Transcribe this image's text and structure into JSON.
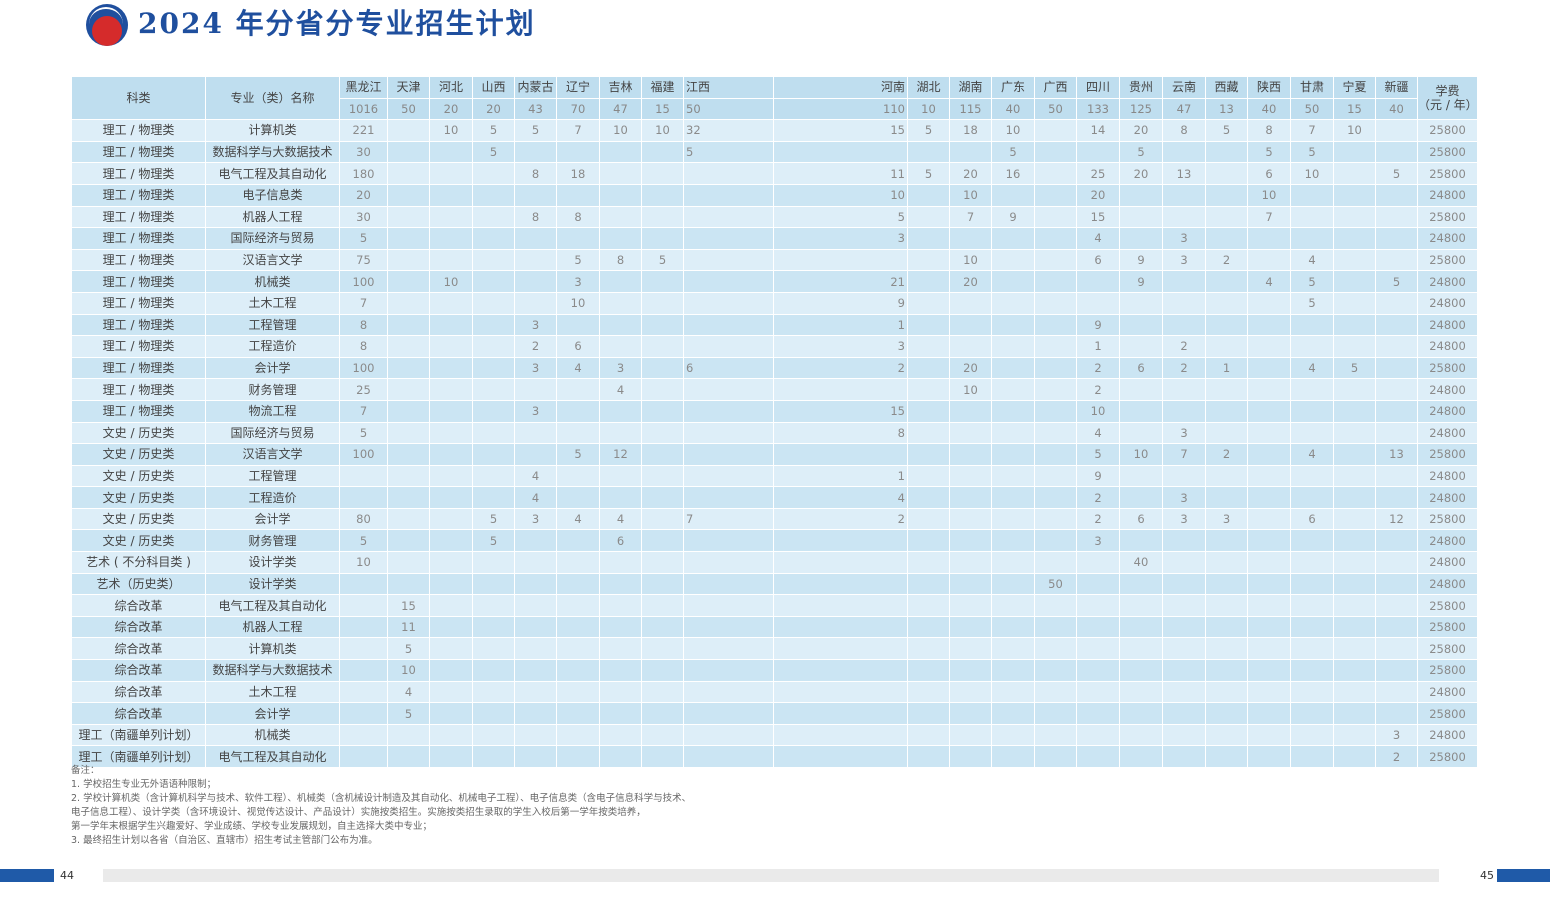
{
  "title": "2024 年分省分专业招生计划",
  "header": {
    "category": "科类",
    "major": "专业（类）名称",
    "fee": "学费（元 / 年）",
    "provinces": [
      "黑龙江",
      "天津",
      "河北",
      "山西",
      "内蒙古",
      "辽宁",
      "吉林",
      "福建",
      "江西",
      "河南",
      "湖北",
      "湖南",
      "广东",
      "广西",
      "四川",
      "贵州",
      "云南",
      "西藏",
      "陕西",
      "甘肃",
      "宁夏",
      "新疆"
    ],
    "totals": [
      "1016",
      "50",
      "20",
      "20",
      "43",
      "70",
      "47",
      "15",
      "50",
      "110",
      "10",
      "115",
      "40",
      "50",
      "133",
      "125",
      "47",
      "13",
      "40",
      "50",
      "15",
      "40"
    ]
  },
  "rows": [
    {
      "category": "理工 / 物理类",
      "major": "计算机类",
      "values": [
        "221",
        "",
        "10",
        "5",
        "5",
        "7",
        "10",
        "10",
        "32",
        "15",
        "5",
        "18",
        "10",
        "",
        "14",
        "20",
        "8",
        "5",
        "8",
        "7",
        "10",
        ""
      ],
      "fee": "25800"
    },
    {
      "category": "理工 / 物理类",
      "major": "数据科学与大数据技术",
      "values": [
        "30",
        "",
        "",
        "5",
        "",
        "",
        "",
        "",
        "5",
        "",
        "",
        "",
        "5",
        "",
        "",
        "5",
        "",
        "",
        "5",
        "5",
        "",
        ""
      ],
      "fee": "25800"
    },
    {
      "category": "理工 / 物理类",
      "major": "电气工程及其自动化",
      "values": [
        "180",
        "",
        "",
        "",
        "8",
        "18",
        "",
        "",
        "",
        "11",
        "5",
        "20",
        "16",
        "",
        "25",
        "20",
        "13",
        "",
        "6",
        "10",
        "",
        "5"
      ],
      "fee": "25800"
    },
    {
      "category": "理工 / 物理类",
      "major": "电子信息类",
      "values": [
        "20",
        "",
        "",
        "",
        "",
        "",
        "",
        "",
        "",
        "10",
        "",
        "10",
        "",
        "",
        "20",
        "",
        "",
        "",
        "10",
        "",
        "",
        ""
      ],
      "fee": "24800"
    },
    {
      "category": "理工 / 物理类",
      "major": "机器人工程",
      "values": [
        "30",
        "",
        "",
        "",
        "8",
        "8",
        "",
        "",
        "",
        "5",
        "",
        "7",
        "9",
        "",
        "15",
        "",
        "",
        "",
        "7",
        "",
        "",
        ""
      ],
      "fee": "25800"
    },
    {
      "category": "理工 / 物理类",
      "major": "国际经济与贸易",
      "values": [
        "5",
        "",
        "",
        "",
        "",
        "",
        "",
        "",
        "",
        "3",
        "",
        "",
        "",
        "",
        "4",
        "",
        "3",
        "",
        "",
        "",
        "",
        ""
      ],
      "fee": "24800"
    },
    {
      "category": "理工 / 物理类",
      "major": "汉语言文学",
      "values": [
        "75",
        "",
        "",
        "",
        "",
        "5",
        "8",
        "5",
        "",
        "",
        "",
        "10",
        "",
        "",
        "6",
        "9",
        "3",
        "2",
        "",
        "4",
        "",
        ""
      ],
      "fee": "25800"
    },
    {
      "category": "理工 / 物理类",
      "major": "机械类",
      "values": [
        "100",
        "",
        "10",
        "",
        "",
        "3",
        "",
        "",
        "",
        "21",
        "",
        "20",
        "",
        "",
        "",
        "9",
        "",
        "",
        "4",
        "5",
        "",
        "5"
      ],
      "fee": "24800"
    },
    {
      "category": "理工 / 物理类",
      "major": "土木工程",
      "values": [
        "7",
        "",
        "",
        "",
        "",
        "10",
        "",
        "",
        "",
        "9",
        "",
        "",
        "",
        "",
        "",
        "",
        "",
        "",
        "",
        "5",
        "",
        ""
      ],
      "fee": "24800"
    },
    {
      "category": "理工 / 物理类",
      "major": "工程管理",
      "values": [
        "8",
        "",
        "",
        "",
        "3",
        "",
        "",
        "",
        "",
        "1",
        "",
        "",
        "",
        "",
        "9",
        "",
        "",
        "",
        "",
        "",
        "",
        ""
      ],
      "fee": "24800"
    },
    {
      "category": "理工 / 物理类",
      "major": "工程造价",
      "values": [
        "8",
        "",
        "",
        "",
        "2",
        "6",
        "",
        "",
        "",
        "3",
        "",
        "",
        "",
        "",
        "1",
        "",
        "2",
        "",
        "",
        "",
        "",
        ""
      ],
      "fee": "24800"
    },
    {
      "category": "理工 / 物理类",
      "major": "会计学",
      "values": [
        "100",
        "",
        "",
        "",
        "3",
        "4",
        "3",
        "",
        "6",
        "2",
        "",
        "20",
        "",
        "",
        "2",
        "6",
        "2",
        "1",
        "",
        "4",
        "5",
        ""
      ],
      "fee": "25800"
    },
    {
      "category": "理工 / 物理类",
      "major": "财务管理",
      "values": [
        "25",
        "",
        "",
        "",
        "",
        "",
        "4",
        "",
        "",
        "",
        "",
        "10",
        "",
        "",
        "2",
        "",
        "",
        "",
        "",
        "",
        "",
        ""
      ],
      "fee": "24800"
    },
    {
      "category": "理工 / 物理类",
      "major": "物流工程",
      "values": [
        "7",
        "",
        "",
        "",
        "3",
        "",
        "",
        "",
        "",
        "15",
        "",
        "",
        "",
        "",
        "10",
        "",
        "",
        "",
        "",
        "",
        "",
        ""
      ],
      "fee": "24800"
    },
    {
      "category": "文史 / 历史类",
      "major": "国际经济与贸易",
      "values": [
        "5",
        "",
        "",
        "",
        "",
        "",
        "",
        "",
        "",
        "8",
        "",
        "",
        "",
        "",
        "4",
        "",
        "3",
        "",
        "",
        "",
        "",
        ""
      ],
      "fee": "24800"
    },
    {
      "category": "文史 / 历史类",
      "major": "汉语言文学",
      "values": [
        "100",
        "",
        "",
        "",
        "",
        "5",
        "12",
        "",
        "",
        "",
        "",
        "",
        "",
        "",
        "5",
        "10",
        "7",
        "2",
        "",
        "4",
        "",
        "13"
      ],
      "fee": "25800"
    },
    {
      "category": "文史 / 历史类",
      "major": "工程管理",
      "values": [
        "",
        "",
        "",
        "",
        "4",
        "",
        "",
        "",
        "",
        "1",
        "",
        "",
        "",
        "",
        "9",
        "",
        "",
        "",
        "",
        "",
        "",
        ""
      ],
      "fee": "24800"
    },
    {
      "category": "文史 / 历史类",
      "major": "工程造价",
      "values": [
        "",
        "",
        "",
        "",
        "4",
        "",
        "",
        "",
        "",
        "4",
        "",
        "",
        "",
        "",
        "2",
        "",
        "3",
        "",
        "",
        "",
        "",
        ""
      ],
      "fee": "24800"
    },
    {
      "category": "文史 / 历史类",
      "major": "会计学",
      "values": [
        "80",
        "",
        "",
        "5",
        "3",
        "4",
        "4",
        "",
        "7",
        "2",
        "",
        "",
        "",
        "",
        "2",
        "6",
        "3",
        "3",
        "",
        "6",
        "",
        "12"
      ],
      "fee": "25800"
    },
    {
      "category": "文史 / 历史类",
      "major": "财务管理",
      "values": [
        "5",
        "",
        "",
        "5",
        "",
        "",
        "6",
        "",
        "",
        "",
        "",
        "",
        "",
        "",
        "3",
        "",
        "",
        "",
        "",
        "",
        "",
        ""
      ],
      "fee": "24800"
    },
    {
      "category": "艺术 ( 不分科目类 )",
      "major": "设计学类",
      "values": [
        "10",
        "",
        "",
        "",
        "",
        "",
        "",
        "",
        "",
        "",
        "",
        "",
        "",
        "",
        "",
        "40",
        "",
        "",
        "",
        "",
        "",
        ""
      ],
      "fee": "24800"
    },
    {
      "category": "艺术（历史类）",
      "major": "设计学类",
      "values": [
        "",
        "",
        "",
        "",
        "",
        "",
        "",
        "",
        "",
        "",
        "",
        "",
        "",
        "50",
        "",
        "",
        "",
        "",
        "",
        "",
        "",
        ""
      ],
      "fee": "24800"
    },
    {
      "category": "综合改革",
      "major": "电气工程及其自动化",
      "values": [
        "",
        "15",
        "",
        "",
        "",
        "",
        "",
        "",
        "",
        "",
        "",
        "",
        "",
        "",
        "",
        "",
        "",
        "",
        "",
        "",
        "",
        ""
      ],
      "fee": "25800"
    },
    {
      "category": "综合改革",
      "major": "机器人工程",
      "values": [
        "",
        "11",
        "",
        "",
        "",
        "",
        "",
        "",
        "",
        "",
        "",
        "",
        "",
        "",
        "",
        "",
        "",
        "",
        "",
        "",
        "",
        ""
      ],
      "fee": "25800"
    },
    {
      "category": "综合改革",
      "major": "计算机类",
      "values": [
        "",
        "5",
        "",
        "",
        "",
        "",
        "",
        "",
        "",
        "",
        "",
        "",
        "",
        "",
        "",
        "",
        "",
        "",
        "",
        "",
        "",
        ""
      ],
      "fee": "25800"
    },
    {
      "category": "综合改革",
      "major": "数据科学与大数据技术",
      "values": [
        "",
        "10",
        "",
        "",
        "",
        "",
        "",
        "",
        "",
        "",
        "",
        "",
        "",
        "",
        "",
        "",
        "",
        "",
        "",
        "",
        "",
        ""
      ],
      "fee": "25800"
    },
    {
      "category": "综合改革",
      "major": "土木工程",
      "values": [
        "",
        "4",
        "",
        "",
        "",
        "",
        "",
        "",
        "",
        "",
        "",
        "",
        "",
        "",
        "",
        "",
        "",
        "",
        "",
        "",
        "",
        ""
      ],
      "fee": "24800"
    },
    {
      "category": "综合改革",
      "major": "会计学",
      "values": [
        "",
        "5",
        "",
        "",
        "",
        "",
        "",
        "",
        "",
        "",
        "",
        "",
        "",
        "",
        "",
        "",
        "",
        "",
        "",
        "",
        "",
        ""
      ],
      "fee": "25800"
    },
    {
      "category": "理工（南疆单列计划）",
      "major": "机械类",
      "values": [
        "",
        "",
        "",
        "",
        "",
        "",
        "",
        "",
        "",
        "",
        "",
        "",
        "",
        "",
        "",
        "",
        "",
        "",
        "",
        "",
        "",
        "3"
      ],
      "fee": "24800"
    },
    {
      "category": "理工（南疆单列计划）",
      "major": "电气工程及其自动化",
      "values": [
        "",
        "",
        "",
        "",
        "",
        "",
        "",
        "",
        "",
        "",
        "",
        "",
        "",
        "",
        "",
        "",
        "",
        "",
        "",
        "",
        "",
        "2"
      ],
      "fee": "25800"
    }
  ],
  "notes": [
    "备注：",
    "1. 学校招生专业无外语语种限制；",
    "2. 学校计算机类（含计算机科学与技术、软件工程）、机械类（含机械设计制造及其自动化、机械电子工程）、电子信息类（含电子信息科学与技术、",
    "电子信息工程）、设计学类（含环境设计、视觉传达设计、产品设计）实施按类招生。实施按类招生录取的学生入校后第一学年按类培养，",
    "第一学年末根据学生兴趣爱好、学业成绩、学校专业发展规划，自主选择大类中专业；",
    "3. 最终招生计划以各省（自治区、直辖市）招生考试主管部门公布为准。"
  ],
  "footer": {
    "page_left": "44",
    "page_right": "45"
  },
  "colors": {
    "brand_blue": "#1f4f9e",
    "brand_red": "#d52b2b",
    "header_bg": "#bfdeef",
    "row_light": "#ddeef8",
    "row_dark": "#cbe5f3"
  }
}
